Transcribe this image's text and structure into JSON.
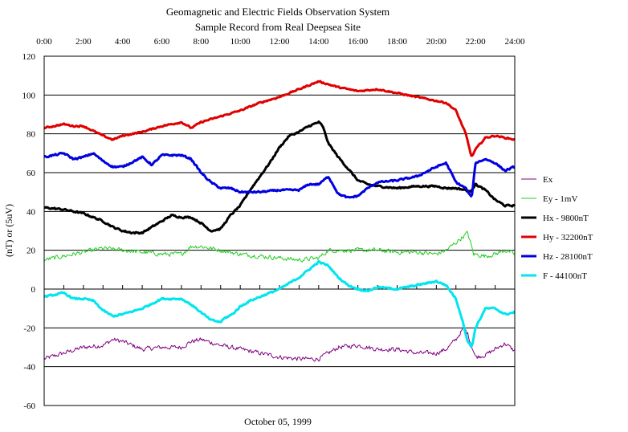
{
  "chart_data": {
    "type": "line",
    "title": "Geomagnetic and Electric Fields Observation System",
    "subtitle": "Sample Record from Real Deepsea Site",
    "xlabel": "October 05, 1999",
    "ylabel": "(nT) or (5uV)",
    "x_ticks": [
      "0:00",
      "2:00",
      "4:00",
      "6:00",
      "8:00",
      "10:00",
      "12:00",
      "14:00",
      "16:00",
      "18:00",
      "20:00",
      "22:00",
      "24:00"
    ],
    "xlim": [
      0,
      24
    ],
    "ylim": [
      -60,
      120
    ],
    "y_ticks": [
      -60,
      -40,
      -20,
      0,
      20,
      40,
      60,
      80,
      100,
      120
    ],
    "y_tick_labels": [
      "-60",
      "-40",
      "-20",
      "0",
      "20",
      "40",
      "60",
      "80",
      "100",
      "120"
    ],
    "grid": "horizontal",
    "legend_position": "right",
    "series": [
      {
        "name": "Ex",
        "color": "#800080",
        "width": 1,
        "noise": 1.6,
        "x": [
          0,
          1,
          2,
          3,
          3.5,
          4,
          5,
          6,
          7,
          7.5,
          8,
          9,
          10,
          11,
          12,
          13,
          14,
          15,
          16,
          17,
          18,
          19,
          20,
          20.5,
          21,
          21.4,
          21.6,
          22,
          22.5,
          23,
          23.5,
          24
        ],
        "y": [
          -36,
          -33,
          -30,
          -29,
          -26,
          -27,
          -31,
          -30,
          -30,
          -27,
          -26,
          -29,
          -31,
          -33,
          -35,
          -36,
          -36,
          -30,
          -29,
          -31,
          -31,
          -33,
          -33,
          -31,
          -26,
          -20,
          -23,
          -35,
          -34,
          -31,
          -28,
          -32
        ]
      },
      {
        "name": "Ey - 1mV",
        "color": "#22cc22",
        "width": 1,
        "noise": 1.6,
        "x": [
          0,
          1,
          2,
          3,
          4,
          5,
          6,
          7,
          7.5,
          8,
          9,
          10,
          11,
          12,
          13,
          14,
          14.5,
          15,
          16,
          17,
          18,
          19,
          20,
          20.5,
          21,
          21.6,
          21.9,
          22.5,
          23,
          23.5,
          24
        ],
        "y": [
          15,
          17,
          19,
          21,
          20,
          19,
          18,
          18,
          22,
          22,
          20,
          18,
          17,
          16,
          15,
          16,
          20,
          20,
          20,
          20,
          19,
          19,
          18,
          20,
          24,
          29,
          18,
          17,
          18,
          20,
          18
        ]
      },
      {
        "name": "Hx - 9800nT",
        "color": "#000000",
        "width": 3,
        "noise": 0.6,
        "x": [
          0,
          1,
          2,
          3,
          3.5,
          4,
          4.5,
          5,
          6,
          6.5,
          7,
          7.5,
          8,
          8.5,
          9,
          9.5,
          10,
          10.5,
          11,
          11.5,
          12,
          12.5,
          13,
          13.5,
          14,
          14.2,
          14.5,
          15,
          15.5,
          16,
          16.5,
          17,
          18,
          19,
          20,
          20.5,
          21,
          21.5,
          21.7,
          22,
          22.5,
          23,
          23.5,
          24
        ],
        "y": [
          42,
          41,
          39,
          35,
          32,
          30,
          29,
          29,
          35,
          38,
          37,
          37,
          34,
          30,
          31,
          38,
          43,
          51,
          58,
          65,
          73,
          79,
          81,
          84,
          86,
          84,
          75,
          68,
          62,
          56,
          54,
          53,
          52,
          53,
          53,
          52,
          52,
          51,
          50,
          54,
          51,
          46,
          43,
          43
        ]
      },
      {
        "name": "Hy - 32200nT",
        "color": "#e00000",
        "width": 3,
        "noise": 0.5,
        "x": [
          0,
          1,
          1.5,
          2,
          3,
          3.5,
          4,
          5,
          6,
          7,
          7.5,
          8,
          9,
          10,
          11,
          12,
          13,
          14,
          15,
          16,
          17,
          18,
          19,
          20,
          20.5,
          21,
          21.5,
          21.8,
          22,
          22.5,
          23,
          23.5,
          24
        ],
        "y": [
          83,
          85,
          84,
          84,
          79,
          77,
          79,
          81,
          84,
          86,
          83,
          86,
          89,
          92,
          96,
          99,
          103,
          107,
          104,
          102,
          103,
          101,
          99,
          97,
          96,
          92,
          80,
          68,
          72,
          78,
          79,
          78,
          77
        ]
      },
      {
        "name": "Hz - 28100nT",
        "color": "#0000e0",
        "width": 3,
        "noise": 0.6,
        "x": [
          0,
          1,
          1.5,
          2,
          2.5,
          3,
          3.5,
          4,
          5,
          5.5,
          6,
          6.5,
          7,
          7.5,
          8,
          8.5,
          9,
          9.5,
          10,
          11,
          12,
          13,
          13.5,
          14,
          14.5,
          15,
          15.5,
          16,
          16.5,
          17,
          18,
          19,
          20,
          20.5,
          21,
          21.5,
          21.8,
          22,
          22.5,
          23,
          23.5,
          24
        ],
        "y": [
          68,
          70,
          67,
          68,
          70,
          66,
          63,
          63,
          68,
          64,
          69,
          69,
          69,
          67,
          60,
          55,
          52,
          52,
          50,
          50,
          51,
          51,
          54,
          54,
          58,
          49,
          47,
          48,
          52,
          55,
          56,
          58,
          63,
          65,
          55,
          52,
          47,
          65,
          67,
          65,
          61,
          63
        ]
      },
      {
        "name": "F - 44100nT",
        "color": "#00e5ee",
        "width": 3,
        "noise": 0.6,
        "x": [
          0,
          1,
          1.5,
          2,
          2.5,
          3,
          3.5,
          4,
          5,
          6,
          7,
          7.5,
          8,
          8.5,
          9,
          9.2,
          9.6,
          10,
          10.5,
          11,
          11.5,
          12,
          12.5,
          13,
          13.5,
          14,
          14.5,
          15,
          15.5,
          16,
          16.5,
          17,
          18,
          19,
          20,
          20.5,
          21,
          21.3,
          21.6,
          21.8,
          22,
          22.5,
          23,
          23.5,
          24
        ],
        "y": [
          -4,
          -2,
          -5,
          -5,
          -6,
          -11,
          -14,
          -13,
          -10,
          -5,
          -5,
          -8,
          -12,
          -16,
          -17,
          -15,
          -13,
          -9,
          -6,
          -4,
          -2,
          0,
          3,
          6,
          10,
          14,
          12,
          6,
          2,
          0,
          -1,
          1,
          0,
          2,
          4,
          2,
          -5,
          -15,
          -27,
          -30,
          -20,
          -10,
          -10,
          -13,
          -12
        ]
      }
    ]
  }
}
